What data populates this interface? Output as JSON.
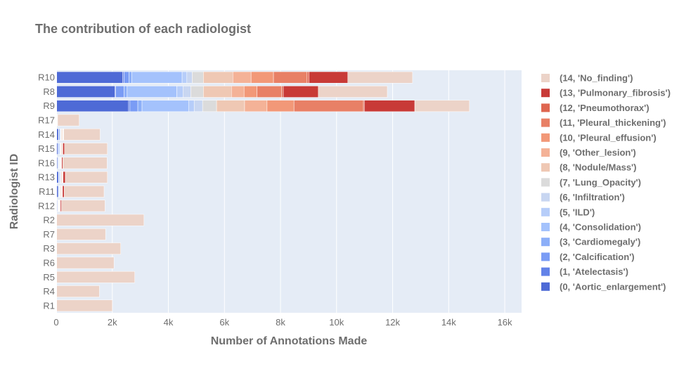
{
  "chart_data": {
    "type": "bar",
    "orientation": "horizontal",
    "barmode": "stack",
    "title": "The contribution of each radiologist",
    "xlabel": "Number of Annotations Made",
    "ylabel": "Radiologist ID",
    "xlim": [
      0,
      16600
    ],
    "x_ticks": [
      0,
      2000,
      4000,
      6000,
      8000,
      10000,
      12000,
      14000,
      16000
    ],
    "x_tick_labels": [
      "0",
      "2k",
      "4k",
      "6k",
      "8k",
      "10k",
      "12k",
      "14k",
      "16k"
    ],
    "grid": true,
    "legend_position": "right",
    "categories": [
      "R1",
      "R4",
      "R5",
      "R6",
      "R3",
      "R7",
      "R2",
      "R12",
      "R11",
      "R13",
      "R16",
      "R15",
      "R14",
      "R17",
      "R9",
      "R8",
      "R10"
    ],
    "series": [
      {
        "name": "(0, 'Aortic_enlargement')",
        "color": "#4e6ad6",
        "values": [
          0,
          0,
          0,
          0,
          0,
          0,
          0,
          40,
          70,
          80,
          50,
          60,
          80,
          10,
          2580,
          2090,
          2370
        ]
      },
      {
        "name": "(1, 'Atelectasis')",
        "color": "#6282e8",
        "values": [
          0,
          0,
          0,
          0,
          0,
          0,
          0,
          5,
          5,
          5,
          5,
          5,
          5,
          0,
          50,
          30,
          50
        ]
      },
      {
        "name": "(2, 'Calcification')",
        "color": "#7a9cf5",
        "values": [
          0,
          0,
          0,
          0,
          0,
          0,
          0,
          10,
          10,
          10,
          10,
          10,
          10,
          0,
          280,
          300,
          170
        ]
      },
      {
        "name": "(3, 'Cardiomegaly')",
        "color": "#8caff8",
        "values": [
          0,
          0,
          0,
          0,
          0,
          0,
          0,
          10,
          20,
          30,
          20,
          40,
          40,
          5,
          150,
          110,
          100
        ]
      },
      {
        "name": "(4, 'Consolidation')",
        "color": "#a4c2fc",
        "values": [
          0,
          0,
          0,
          0,
          0,
          0,
          0,
          10,
          20,
          20,
          20,
          20,
          20,
          5,
          1660,
          1770,
          1800
        ]
      },
      {
        "name": "(5, 'ILD')",
        "color": "#b6cdf9",
        "values": [
          0,
          0,
          0,
          0,
          0,
          0,
          0,
          5,
          5,
          5,
          5,
          5,
          5,
          0,
          200,
          220,
          170
        ]
      },
      {
        "name": "(6, 'Infiltration')",
        "color": "#c8d6f1",
        "values": [
          0,
          0,
          0,
          0,
          0,
          0,
          0,
          10,
          10,
          10,
          10,
          10,
          10,
          0,
          300,
          280,
          190
        ]
      },
      {
        "name": "(7, 'Lung_Opacity')",
        "color": "#dbdbdb",
        "values": [
          0,
          0,
          0,
          0,
          0,
          0,
          0,
          10,
          20,
          20,
          20,
          20,
          20,
          5,
          500,
          450,
          400
        ]
      },
      {
        "name": "(8, 'Nodule/Mass')",
        "color": "#efc8b4",
        "values": [
          0,
          0,
          0,
          0,
          0,
          0,
          0,
          20,
          30,
          30,
          20,
          30,
          30,
          5,
          1000,
          1000,
          1050
        ]
      },
      {
        "name": "(9, 'Other_lesion')",
        "color": "#f4b297",
        "values": [
          0,
          0,
          0,
          0,
          0,
          0,
          0,
          5,
          10,
          10,
          10,
          10,
          10,
          0,
          800,
          450,
          650
        ]
      },
      {
        "name": "(10, 'Pleural_effusion')",
        "color": "#f29878",
        "values": [
          0,
          0,
          0,
          0,
          0,
          0,
          0,
          10,
          10,
          10,
          10,
          10,
          10,
          5,
          960,
          460,
          800
        ]
      },
      {
        "name": "(11, 'Pleural_thickening')",
        "color": "#e88066",
        "values": [
          0,
          0,
          0,
          0,
          0,
          0,
          0,
          10,
          10,
          10,
          10,
          10,
          10,
          5,
          2480,
          880,
          1200
        ]
      },
      {
        "name": "(12, 'Pneumothorax')",
        "color": "#df6650",
        "values": [
          0,
          0,
          0,
          0,
          0,
          0,
          0,
          5,
          5,
          5,
          5,
          5,
          5,
          0,
          30,
          60,
          70
        ]
      },
      {
        "name": "(13, 'Pulmonary_fibrosis')",
        "color": "#c83a37",
        "values": [
          0,
          0,
          0,
          0,
          0,
          0,
          0,
          40,
          60,
          80,
          40,
          60,
          10,
          10,
          1800,
          1250,
          1380
        ]
      },
      {
        "name": "(14, 'No_finding')",
        "color": "#ecd3c8",
        "values": [
          2000,
          1540,
          2800,
          2060,
          2300,
          1760,
          3130,
          1550,
          1420,
          1500,
          1580,
          1530,
          1300,
          770,
          1950,
          2460,
          2310
        ]
      }
    ]
  }
}
